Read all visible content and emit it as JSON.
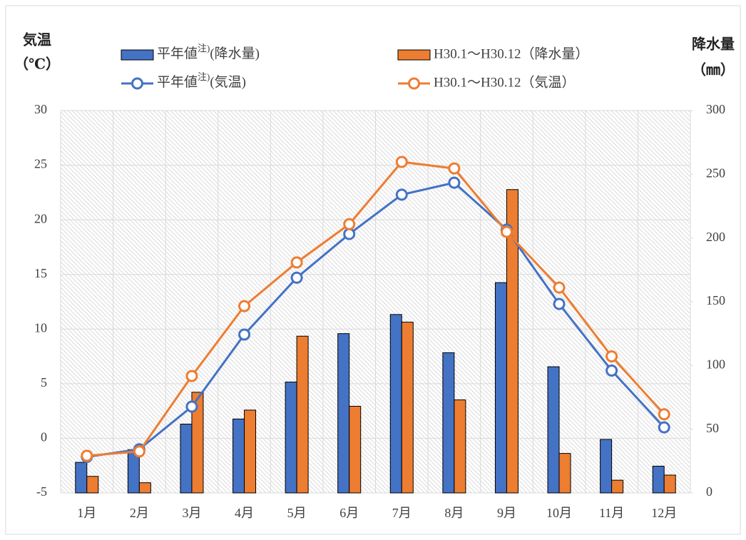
{
  "chart_data": {
    "type": "combo",
    "y_label": [
      "気温",
      "（℃）"
    ],
    "y2_label": [
      "降水量",
      "（㎜）"
    ],
    "categories": [
      "1月",
      "2月",
      "3月",
      "4月",
      "5月",
      "6月",
      "7月",
      "8月",
      "9月",
      "10月",
      "11月",
      "12月"
    ],
    "ylim": [
      -5,
      30
    ],
    "yticks": [
      -5,
      0,
      5,
      10,
      15,
      20,
      25,
      30
    ],
    "y2lim": [
      0,
      300
    ],
    "y2ticks": [
      0,
      50,
      100,
      150,
      200,
      250,
      300
    ],
    "grid": true,
    "series": [
      {
        "name": "平年値注)(降水量)",
        "type": "bar",
        "axis": "y2",
        "color": "#4472c4",
        "values": [
          24,
          34,
          54,
          58,
          87,
          125,
          140,
          110,
          165,
          99,
          42,
          21
        ]
      },
      {
        "name": "H30.1～H30.12（降水量）",
        "type": "bar",
        "axis": "y2",
        "color": "#ed7d31",
        "values": [
          13,
          8,
          79,
          65,
          123,
          68,
          134,
          73,
          238,
          31,
          10,
          14
        ]
      },
      {
        "name": "平年値注)(気温)",
        "type": "line",
        "color": "#4472c4",
        "values": [
          -1.7,
          -1.0,
          2.9,
          9.5,
          14.7,
          18.7,
          22.3,
          23.4,
          19.1,
          12.3,
          6.2,
          1.0
        ]
      },
      {
        "name": "H30.1～H30.12（気温）",
        "type": "line",
        "color": "#ed7d31",
        "values": [
          -1.6,
          -1.2,
          5.7,
          12.1,
          16.1,
          19.6,
          25.3,
          24.7,
          18.9,
          13.8,
          7.5,
          2.2
        ]
      }
    ]
  }
}
